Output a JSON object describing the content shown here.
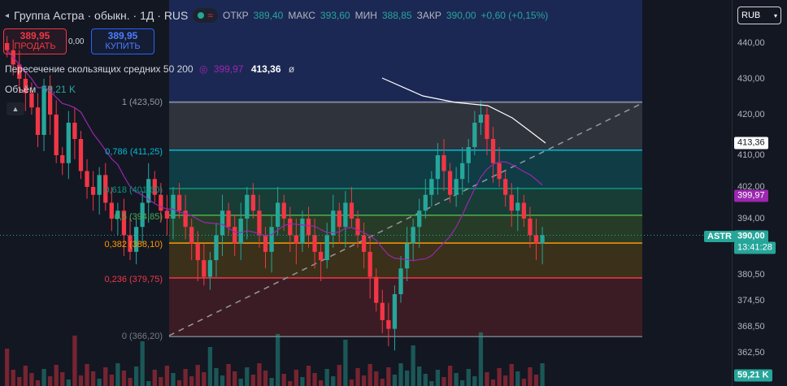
{
  "header": {
    "symbol_title": "Группа Астра · обыкн. · 1Д · RUS",
    "open_label": "ОТКР",
    "open_value": "389,40",
    "high_label": "МАКС",
    "high_value": "393,60",
    "low_label": "МИН",
    "low_value": "388,85",
    "close_label": "ЗАКР",
    "close_value": "390,00",
    "change_value": "+0,60 (+0,15%)"
  },
  "trade": {
    "sell_price": "389,95",
    "sell_label": "ПРОДАТЬ",
    "spread": "0,00",
    "buy_price": "389,95",
    "buy_label": "КУПИТЬ"
  },
  "indicators": {
    "ma_cross_name": "Пересечение скользящих средних 50 200",
    "ma_cross_val1": "399,97",
    "ma_cross_val2": "413,36",
    "volume_label": "Объём",
    "volume_value": "59,21 K"
  },
  "currency": {
    "label": "RUB"
  },
  "price_axis": {
    "ticks": [
      "440,00",
      "430,00",
      "420,00",
      "410,00",
      "402,00",
      "394,00",
      "380,50",
      "374,50",
      "368,50",
      "362,50"
    ],
    "tag_ma200": "413,36",
    "tag_ma50": "399,97",
    "tag_price": "390,00",
    "tag_time": "13:41:28",
    "tag_volume": "59,21 K",
    "symbol_tag": "ASTR"
  },
  "fib_levels": [
    {
      "ratio": "1",
      "label": "1 (423,50)",
      "price": 423.5,
      "color": "#9598a1"
    },
    {
      "ratio": "0.786",
      "label": "0,786 (411,25)",
      "price": 411.25,
      "color": "#00bcd4"
    },
    {
      "ratio": "0.618",
      "label": "0,618 (401,60)",
      "price": 401.6,
      "color": "#089981"
    },
    {
      "ratio": "0.5",
      "label": "0,5 (394,85)",
      "price": 394.85,
      "color": "#4caf50"
    },
    {
      "ratio": "0.382",
      "label": "0,382 (388,10)",
      "price": 388.1,
      "color": "#ff9800"
    },
    {
      "ratio": "0.236",
      "label": "0,236 (379,75)",
      "price": 379.75,
      "color": "#f23645"
    },
    {
      "ratio": "0",
      "label": "0 (366,20)",
      "price": 366.2,
      "color": "#787b86"
    }
  ],
  "colors": {
    "up": "#26a69a",
    "down": "#f23645",
    "ma50": "#9c27b0",
    "ma200": "#ffffff",
    "accent": "#2962ff"
  },
  "chart_data": {
    "type": "candlestick",
    "series": [
      {
        "name": "ASTR",
        "close_last": 390.0
      },
      {
        "name": "MA 50",
        "last": 399.97
      },
      {
        "name": "MA 200",
        "last": 413.36
      }
    ],
    "closes": [
      438,
      434,
      430,
      426,
      422,
      415,
      428,
      420,
      410,
      408,
      418,
      414,
      406,
      402,
      400,
      405,
      398,
      394,
      396,
      390,
      386,
      392,
      398,
      404,
      400,
      396,
      394,
      400,
      396,
      392,
      388,
      384,
      380,
      384,
      390,
      396,
      392,
      388,
      394,
      400,
      396,
      390,
      386,
      392,
      398,
      394,
      390,
      388,
      394,
      390,
      386,
      384,
      390,
      396,
      392,
      398,
      394,
      390,
      386,
      380,
      374,
      370,
      368,
      376,
      382,
      388,
      392,
      396,
      400,
      404,
      410,
      406,
      400,
      404,
      408,
      412,
      418,
      420,
      414,
      408,
      404,
      400,
      396,
      398,
      394,
      390,
      388,
      390
    ],
    "volume_last": "59,21 K",
    "ylim": [
      360,
      445
    ]
  }
}
